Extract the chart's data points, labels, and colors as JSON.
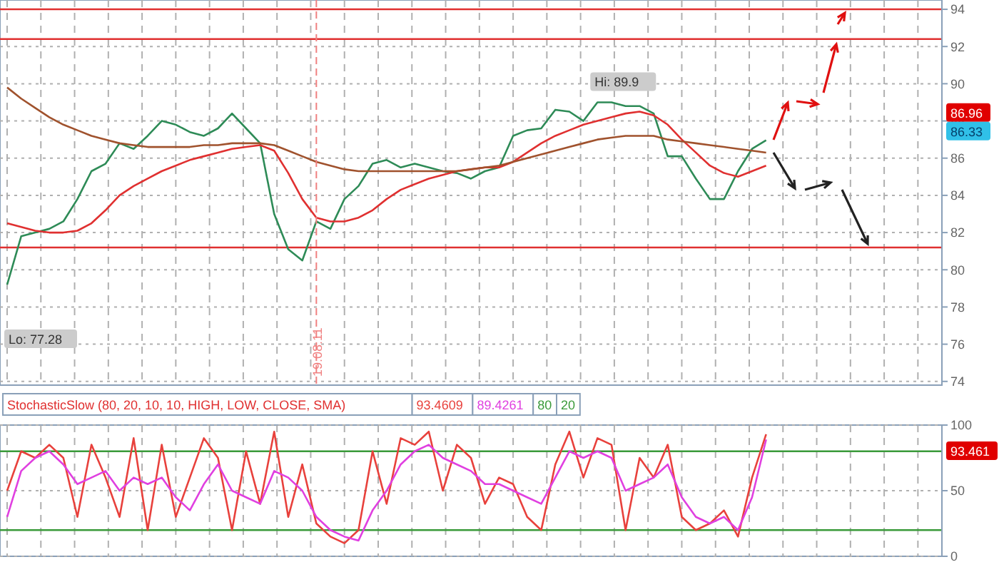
{
  "chart_data": [
    {
      "type": "line",
      "categories": [
        null,
        null,
        null,
        null,
        null,
        null,
        null,
        null,
        null,
        null,
        null,
        null,
        null,
        null,
        null,
        null,
        null,
        null,
        null,
        null,
        null,
        null,
        null,
        null,
        null,
        null,
        null,
        null,
        null,
        null,
        null,
        null,
        null,
        null,
        null,
        null,
        null,
        null,
        null,
        null,
        null,
        null,
        null,
        null,
        null,
        null,
        null,
        null,
        null,
        null,
        null,
        null,
        null,
        null,
        null,
        null,
        null,
        null,
        null,
        null,
        null,
        null,
        null,
        null,
        null,
        null,
        null
      ],
      "series": [
        {
          "color": "#2e8b57",
          "values": [
            79.2,
            81.8,
            82.0,
            82.2,
            82.6,
            83.8,
            85.3,
            85.7,
            86.8,
            86.5,
            87.2,
            88.0,
            87.8,
            87.4,
            87.2,
            87.6,
            88.4,
            87.6,
            86.8,
            83.0,
            81.1,
            80.5,
            82.6,
            82.2,
            83.8,
            84.5,
            85.7,
            85.9,
            85.5,
            85.7,
            85.5,
            85.3,
            85.2,
            84.9,
            85.3,
            85.5,
            87.2,
            87.5,
            87.6,
            88.6,
            88.5,
            88.0,
            89.0,
            89.0,
            88.8,
            88.8,
            88.4,
            86.1,
            86.1,
            84.9,
            83.8,
            83.8,
            85.3,
            86.5,
            86.96,
            null,
            null,
            null,
            null,
            null,
            null,
            null,
            null,
            null,
            null,
            null,
            null
          ]
        },
        {
          "color": "#e03030",
          "values": [
            82.5,
            82.3,
            82.1,
            82.0,
            82.0,
            82.1,
            82.5,
            83.2,
            84.0,
            84.5,
            84.9,
            85.3,
            85.6,
            85.9,
            86.1,
            86.3,
            86.5,
            86.6,
            86.7,
            86.4,
            85.2,
            83.8,
            82.8,
            82.6,
            82.6,
            82.8,
            83.2,
            83.8,
            84.3,
            84.6,
            84.9,
            85.1,
            85.3,
            85.4,
            85.5,
            85.5,
            85.8,
            86.3,
            86.8,
            87.2,
            87.5,
            87.8,
            88.0,
            88.2,
            88.4,
            88.5,
            88.3,
            87.8,
            87.0,
            86.3,
            85.6,
            85.2,
            85.0,
            85.3,
            85.6,
            null,
            null,
            null,
            null,
            null,
            null,
            null,
            null,
            null,
            null,
            null,
            null
          ]
        },
        {
          "color": "#a0522d",
          "values": [
            89.8,
            89.2,
            88.7,
            88.2,
            87.8,
            87.5,
            87.2,
            87.0,
            86.8,
            86.7,
            86.6,
            86.6,
            86.6,
            86.6,
            86.7,
            86.7,
            86.8,
            86.8,
            86.8,
            86.7,
            86.4,
            86.1,
            85.8,
            85.6,
            85.4,
            85.3,
            85.3,
            85.3,
            85.3,
            85.3,
            85.3,
            85.3,
            85.3,
            85.4,
            85.5,
            85.6,
            85.8,
            86.0,
            86.2,
            86.4,
            86.6,
            86.8,
            87.0,
            87.1,
            87.2,
            87.2,
            87.2,
            87.0,
            86.9,
            86.8,
            86.7,
            86.6,
            86.5,
            86.4,
            86.3,
            null,
            null,
            null,
            null,
            null,
            null,
            null,
            null,
            null,
            null,
            null,
            null
          ]
        }
      ],
      "ylim": [
        73.8,
        94.5
      ],
      "yticks": [
        74,
        76,
        78,
        80,
        82,
        84,
        86,
        88,
        90,
        92,
        94
      ],
      "grid": true,
      "tick_labels": "y",
      "ref_lines": [
        {
          "axis": "y",
          "value": 94,
          "color": "#e03030"
        },
        {
          "axis": "y",
          "value": 92.4,
          "color": "#e03030"
        },
        {
          "axis": "y",
          "value": 81.2,
          "color": "#e03030"
        }
      ],
      "annotations": [
        "Hi: 89.9",
        "Lo: 77.28",
        "86.96",
        "86.33",
        "19.08.11"
      ]
    },
    {
      "type": "line",
      "legend_title": "StochasticSlow (80, 20, 10, 10, HIGH, LOW, CLOSE, SMA)",
      "legend": "top left",
      "categories": [
        null,
        null,
        null,
        null,
        null,
        null,
        null,
        null,
        null,
        null,
        null,
        null,
        null,
        null,
        null,
        null,
        null,
        null,
        null,
        null,
        null,
        null,
        null,
        null,
        null,
        null,
        null,
        null,
        null,
        null,
        null,
        null,
        null,
        null,
        null,
        null,
        null,
        null,
        null,
        null,
        null,
        null,
        null,
        null,
        null,
        null,
        null,
        null,
        null,
        null,
        null,
        null,
        null,
        null,
        null,
        null,
        null,
        null,
        null,
        null,
        null,
        null,
        null,
        null,
        null,
        null,
        null
      ],
      "series": [
        {
          "name": "93.4609",
          "color": "#e8413c",
          "values": [
            50,
            80,
            75,
            85,
            75,
            30,
            85,
            60,
            30,
            90,
            20,
            85,
            30,
            60,
            90,
            75,
            20,
            80,
            40,
            95,
            30,
            70,
            25,
            15,
            10,
            20,
            80,
            40,
            90,
            85,
            95,
            50,
            85,
            75,
            40,
            60,
            55,
            30,
            20,
            70,
            95,
            60,
            90,
            85,
            20,
            75,
            60,
            85,
            30,
            20,
            25,
            35,
            15,
            60,
            93,
            null,
            null,
            null,
            null,
            null,
            null,
            null,
            null,
            null,
            null,
            null,
            null
          ]
        },
        {
          "name": "89.4261",
          "color": "#e040e0",
          "values": [
            30,
            65,
            75,
            80,
            70,
            55,
            60,
            65,
            50,
            60,
            55,
            60,
            45,
            35,
            55,
            70,
            50,
            45,
            40,
            65,
            60,
            50,
            30,
            20,
            15,
            12,
            35,
            50,
            70,
            80,
            85,
            75,
            70,
            65,
            55,
            55,
            50,
            45,
            40,
            60,
            80,
            75,
            80,
            75,
            50,
            55,
            60,
            70,
            45,
            30,
            25,
            30,
            20,
            45,
            89,
            null,
            null,
            null,
            null,
            null,
            null,
            null,
            null,
            null,
            null,
            null,
            null
          ]
        }
      ],
      "ylim": [
        0,
        100
      ],
      "yticks": [
        0,
        50,
        100
      ],
      "grid": true,
      "tick_labels": "y",
      "ref_lines": [
        {
          "axis": "y",
          "value": 80,
          "label": "80",
          "color": "#3a9a3a"
        },
        {
          "axis": "y",
          "value": 20,
          "label": "20",
          "color": "#3a9a3a"
        }
      ],
      "annotations": [
        "93.461"
      ]
    }
  ]
}
